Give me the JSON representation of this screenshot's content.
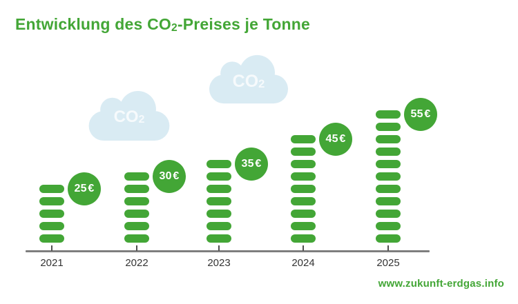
{
  "title": {
    "prefix": "Entwicklung des CO",
    "subscript": "2",
    "suffix": "-Preises je Tonne"
  },
  "clouds": [
    {
      "label_prefix": "CO",
      "label_subscript": "2"
    },
    {
      "label_prefix": "CO",
      "label_subscript": "2"
    }
  ],
  "chart_data": {
    "type": "bar",
    "title": "Entwicklung des CO2-Preises je Tonne",
    "categories": [
      "2021",
      "2022",
      "2023",
      "2024",
      "2025"
    ],
    "values": [
      25,
      30,
      35,
      45,
      55
    ],
    "unit": "€",
    "value_labels": [
      "25 €",
      "30 €",
      "35 €",
      "45 €",
      "55 €"
    ],
    "euros_per_pill": 5,
    "pill_counts": [
      5,
      6,
      7,
      9,
      11
    ],
    "xlabel": "",
    "ylabel": "",
    "grid": false,
    "legend": false,
    "note": "bars drawn as stacks of rounded pills, one pill per 5 EUR"
  },
  "footer": {
    "website": "www.zukunft-erdgas.info"
  },
  "colors": {
    "green": "#43a636",
    "cloud_blue": "#d9ebf3",
    "cloud_text": "#ffffff",
    "axis_gray": "#7e7e7e",
    "tick_gray": "#4f4f4f",
    "label_dark": "#333333",
    "background": "#ffffff"
  }
}
